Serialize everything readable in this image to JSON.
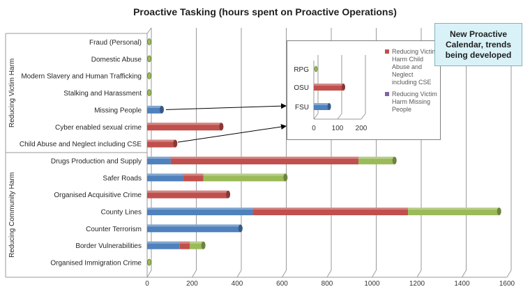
{
  "chart_data": {
    "type": "bar",
    "orientation": "horizontal",
    "stacked": true,
    "title": "Proactive Tasking (hours spent on Proactive Operations)",
    "xlim": [
      0,
      1600
    ],
    "xticks": [
      0,
      200,
      400,
      600,
      800,
      1000,
      1200,
      1400,
      1600
    ],
    "grid": true,
    "groups": [
      {
        "label": "Reducing Victim Harm",
        "categories": [
          "Fraud (Personal)",
          "Domestic Abuse",
          "Modern Slavery and Human Trafficking",
          "Stalking and Harassment",
          "Missing People",
          "Cyber enabled sexual crime",
          "Child Abuse and Neglect including CSE"
        ]
      },
      {
        "label": "Reducing Community Harm",
        "categories": [
          "Drugs Production and Supply",
          "Safer Roads",
          "Organised Acquisitive Crime",
          "County Lines",
          "Counter Terrorism",
          "Border Vulnerabilities",
          "Organised Immigration Crime"
        ]
      }
    ],
    "categories": [
      "Fraud (Personal)",
      "Domestic Abuse",
      "Modern Slavery and Human Trafficking",
      "Stalking and Harassment",
      "Missing People",
      "Cyber enabled sexual crime",
      "Child Abuse and Neglect including CSE",
      "Drugs Production and Supply",
      "Safer Roads",
      "Organised Acquisitive Crime",
      "County Lines",
      "Counter Terrorism",
      "Border Vulnerabilities",
      "Organised Immigration Crime"
    ],
    "series": [
      {
        "color": "#4f81bd",
        "values": [
          0,
          0,
          0,
          0,
          65,
          0,
          0,
          105,
          160,
          0,
          470,
          415,
          145,
          0
        ]
      },
      {
        "color": "#c0504d",
        "values": [
          0,
          0,
          0,
          0,
          0,
          330,
          125,
          835,
          90,
          360,
          690,
          0,
          45,
          0
        ]
      },
      {
        "color": "#9bbb59",
        "values": [
          0,
          0,
          0,
          0,
          0,
          0,
          0,
          160,
          365,
          0,
          405,
          0,
          60,
          0
        ]
      }
    ],
    "inset": {
      "categories": [
        "RPG",
        "OSU",
        "FSU"
      ],
      "xlim": [
        0,
        200
      ],
      "xticks": [
        0,
        100,
        200
      ],
      "series": [
        {
          "name": "Reducing Victim Harm Child Abuse and Neglect including CSE",
          "color": "#c0504d",
          "values": [
            0,
            125,
            0
          ]
        },
        {
          "name": "Reducing Victim Harm Missing People",
          "color": "#4f81bd",
          "values": [
            0,
            0,
            65
          ]
        }
      ]
    }
  },
  "callout": {
    "text": "New Proactive Calendar, trends being developed"
  }
}
